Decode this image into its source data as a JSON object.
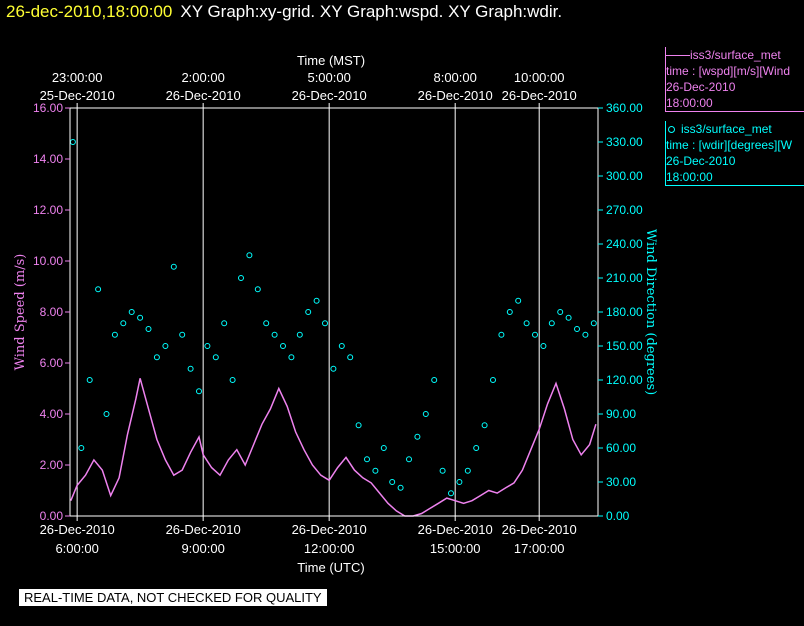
{
  "header": {
    "timestamp": "26-dec-2010,18:00:00",
    "title": "XY Graph:xy-grid.  XY Graph:wspd.  XY Graph:wdir."
  },
  "legend": [
    {
      "line1": "iss3/surface_met",
      "line2": "time : [wspd][m/s][Wind",
      "line3": "26-Dec-2010",
      "line4": "18:00:00"
    },
    {
      "line1": "iss3/surface_met",
      "line2": "time : [wdir][degrees][W",
      "line3": "26-Dec-2010",
      "line4": "18:00:00"
    }
  ],
  "notice": "REAL-TIME DATA, NOT CHECKED FOR QUALITY",
  "colors": {
    "wspd": "#ee82ee",
    "wdir": "#00ffff",
    "timestamp": "#ffff33",
    "background": "#000000"
  },
  "chart_data": {
    "type": "scatter",
    "xlabel_bottom": "Time (UTC)",
    "xlabel_top": "Time (MST)",
    "ylabel_left": "Wind Speed (m/s)",
    "ylabel_right": "Wind Direction (degrees)",
    "x_range_utc_hours": [
      5.83,
      18.4
    ],
    "bottom_ticks": [
      {
        "hour": 6,
        "line1": "26-Dec-2010",
        "line2": "6:00:00"
      },
      {
        "hour": 9,
        "line1": "26-Dec-2010",
        "line2": "9:00:00"
      },
      {
        "hour": 12,
        "line1": "26-Dec-2010",
        "line2": "12:00:00"
      },
      {
        "hour": 15,
        "line1": "26-Dec-2010",
        "line2": "15:00:00"
      },
      {
        "hour": 17,
        "line1": "26-Dec-2010",
        "line2": "17:00:00"
      }
    ],
    "top_ticks": [
      {
        "hour": 6,
        "line1": "23:00:00",
        "line2": "25-Dec-2010"
      },
      {
        "hour": 9,
        "line1": "2:00:00",
        "line2": "26-Dec-2010"
      },
      {
        "hour": 12,
        "line1": "5:00:00",
        "line2": "26-Dec-2010"
      },
      {
        "hour": 15,
        "line1": "8:00:00",
        "line2": "26-Dec-2010"
      },
      {
        "hour": 17,
        "line1": "10:00:00",
        "line2": "26-Dec-2010"
      }
    ],
    "left_axis": {
      "range": [
        0,
        16
      ],
      "ticks": [
        "0.00",
        "2.00",
        "4.00",
        "6.00",
        "8.00",
        "10.00",
        "12.00",
        "14.00",
        "16.00"
      ]
    },
    "right_axis": {
      "range": [
        0,
        360
      ],
      "ticks": [
        "0.00",
        "30.00",
        "60.00",
        "90.00",
        "120.00",
        "150.00",
        "180.00",
        "210.00",
        "240.00",
        "270.00",
        "300.00",
        "330.00",
        "360.00"
      ]
    },
    "grid": true,
    "series": [
      {
        "name": "iss3/surface_met",
        "axis": "left",
        "style": "line",
        "x": [
          5.85,
          6.0,
          6.2,
          6.4,
          6.6,
          6.8,
          7.0,
          7.2,
          7.4,
          7.5,
          7.7,
          7.9,
          8.1,
          8.3,
          8.5,
          8.7,
          8.9,
          9.0,
          9.2,
          9.4,
          9.6,
          9.8,
          10.0,
          10.2,
          10.4,
          10.6,
          10.8,
          11.0,
          11.2,
          11.4,
          11.6,
          11.8,
          12.0,
          12.2,
          12.4,
          12.6,
          12.8,
          13.0,
          13.2,
          13.4,
          13.6,
          13.8,
          14.0,
          14.2,
          14.4,
          14.6,
          14.8,
          15.0,
          15.2,
          15.4,
          15.6,
          15.8,
          16.0,
          16.2,
          16.4,
          16.6,
          16.8,
          17.0,
          17.2,
          17.4,
          17.6,
          17.8,
          18.0,
          18.2,
          18.35
        ],
        "y": [
          0.6,
          1.2,
          1.6,
          2.2,
          1.8,
          0.8,
          1.5,
          3.2,
          4.6,
          5.4,
          4.2,
          3.0,
          2.2,
          1.6,
          1.8,
          2.5,
          3.1,
          2.4,
          1.9,
          1.6,
          2.2,
          2.6,
          2.0,
          2.8,
          3.6,
          4.2,
          5.0,
          4.3,
          3.3,
          2.6,
          2.0,
          1.6,
          1.4,
          1.9,
          2.3,
          1.8,
          1.5,
          1.3,
          0.9,
          0.5,
          0.2,
          0.0,
          0.0,
          0.1,
          0.3,
          0.5,
          0.7,
          0.6,
          0.5,
          0.6,
          0.8,
          1.0,
          0.9,
          1.1,
          1.3,
          1.8,
          2.6,
          3.4,
          4.4,
          5.2,
          4.2,
          3.0,
          2.4,
          2.8,
          3.6
        ]
      },
      {
        "name": "iss3/surface_met",
        "axis": "right",
        "style": "markers",
        "x": [
          5.9,
          6.1,
          6.3,
          6.5,
          6.7,
          6.9,
          7.1,
          7.3,
          7.5,
          7.7,
          7.9,
          8.1,
          8.3,
          8.5,
          8.7,
          8.9,
          9.1,
          9.3,
          9.5,
          9.7,
          9.9,
          10.1,
          10.3,
          10.5,
          10.7,
          10.9,
          11.1,
          11.3,
          11.5,
          11.7,
          11.9,
          12.1,
          12.3,
          12.5,
          12.7,
          12.9,
          13.1,
          13.3,
          13.5,
          13.7,
          13.9,
          14.1,
          14.3,
          14.5,
          14.7,
          14.9,
          15.1,
          15.3,
          15.5,
          15.7,
          15.9,
          16.1,
          16.3,
          16.5,
          16.7,
          16.9,
          17.1,
          17.3,
          17.5,
          17.7,
          17.9,
          18.1,
          18.3
        ],
        "y": [
          330,
          60,
          120,
          200,
          90,
          160,
          170,
          180,
          175,
          165,
          140,
          150,
          220,
          160,
          130,
          110,
          150,
          140,
          170,
          120,
          210,
          230,
          200,
          170,
          160,
          150,
          140,
          160,
          180,
          190,
          170,
          130,
          150,
          140,
          80,
          50,
          40,
          60,
          30,
          25,
          50,
          70,
          90,
          120,
          40,
          20,
          30,
          40,
          60,
          80,
          120,
          160,
          180,
          190,
          170,
          160,
          150,
          170,
          180,
          175,
          165,
          160,
          170
        ]
      }
    ]
  }
}
